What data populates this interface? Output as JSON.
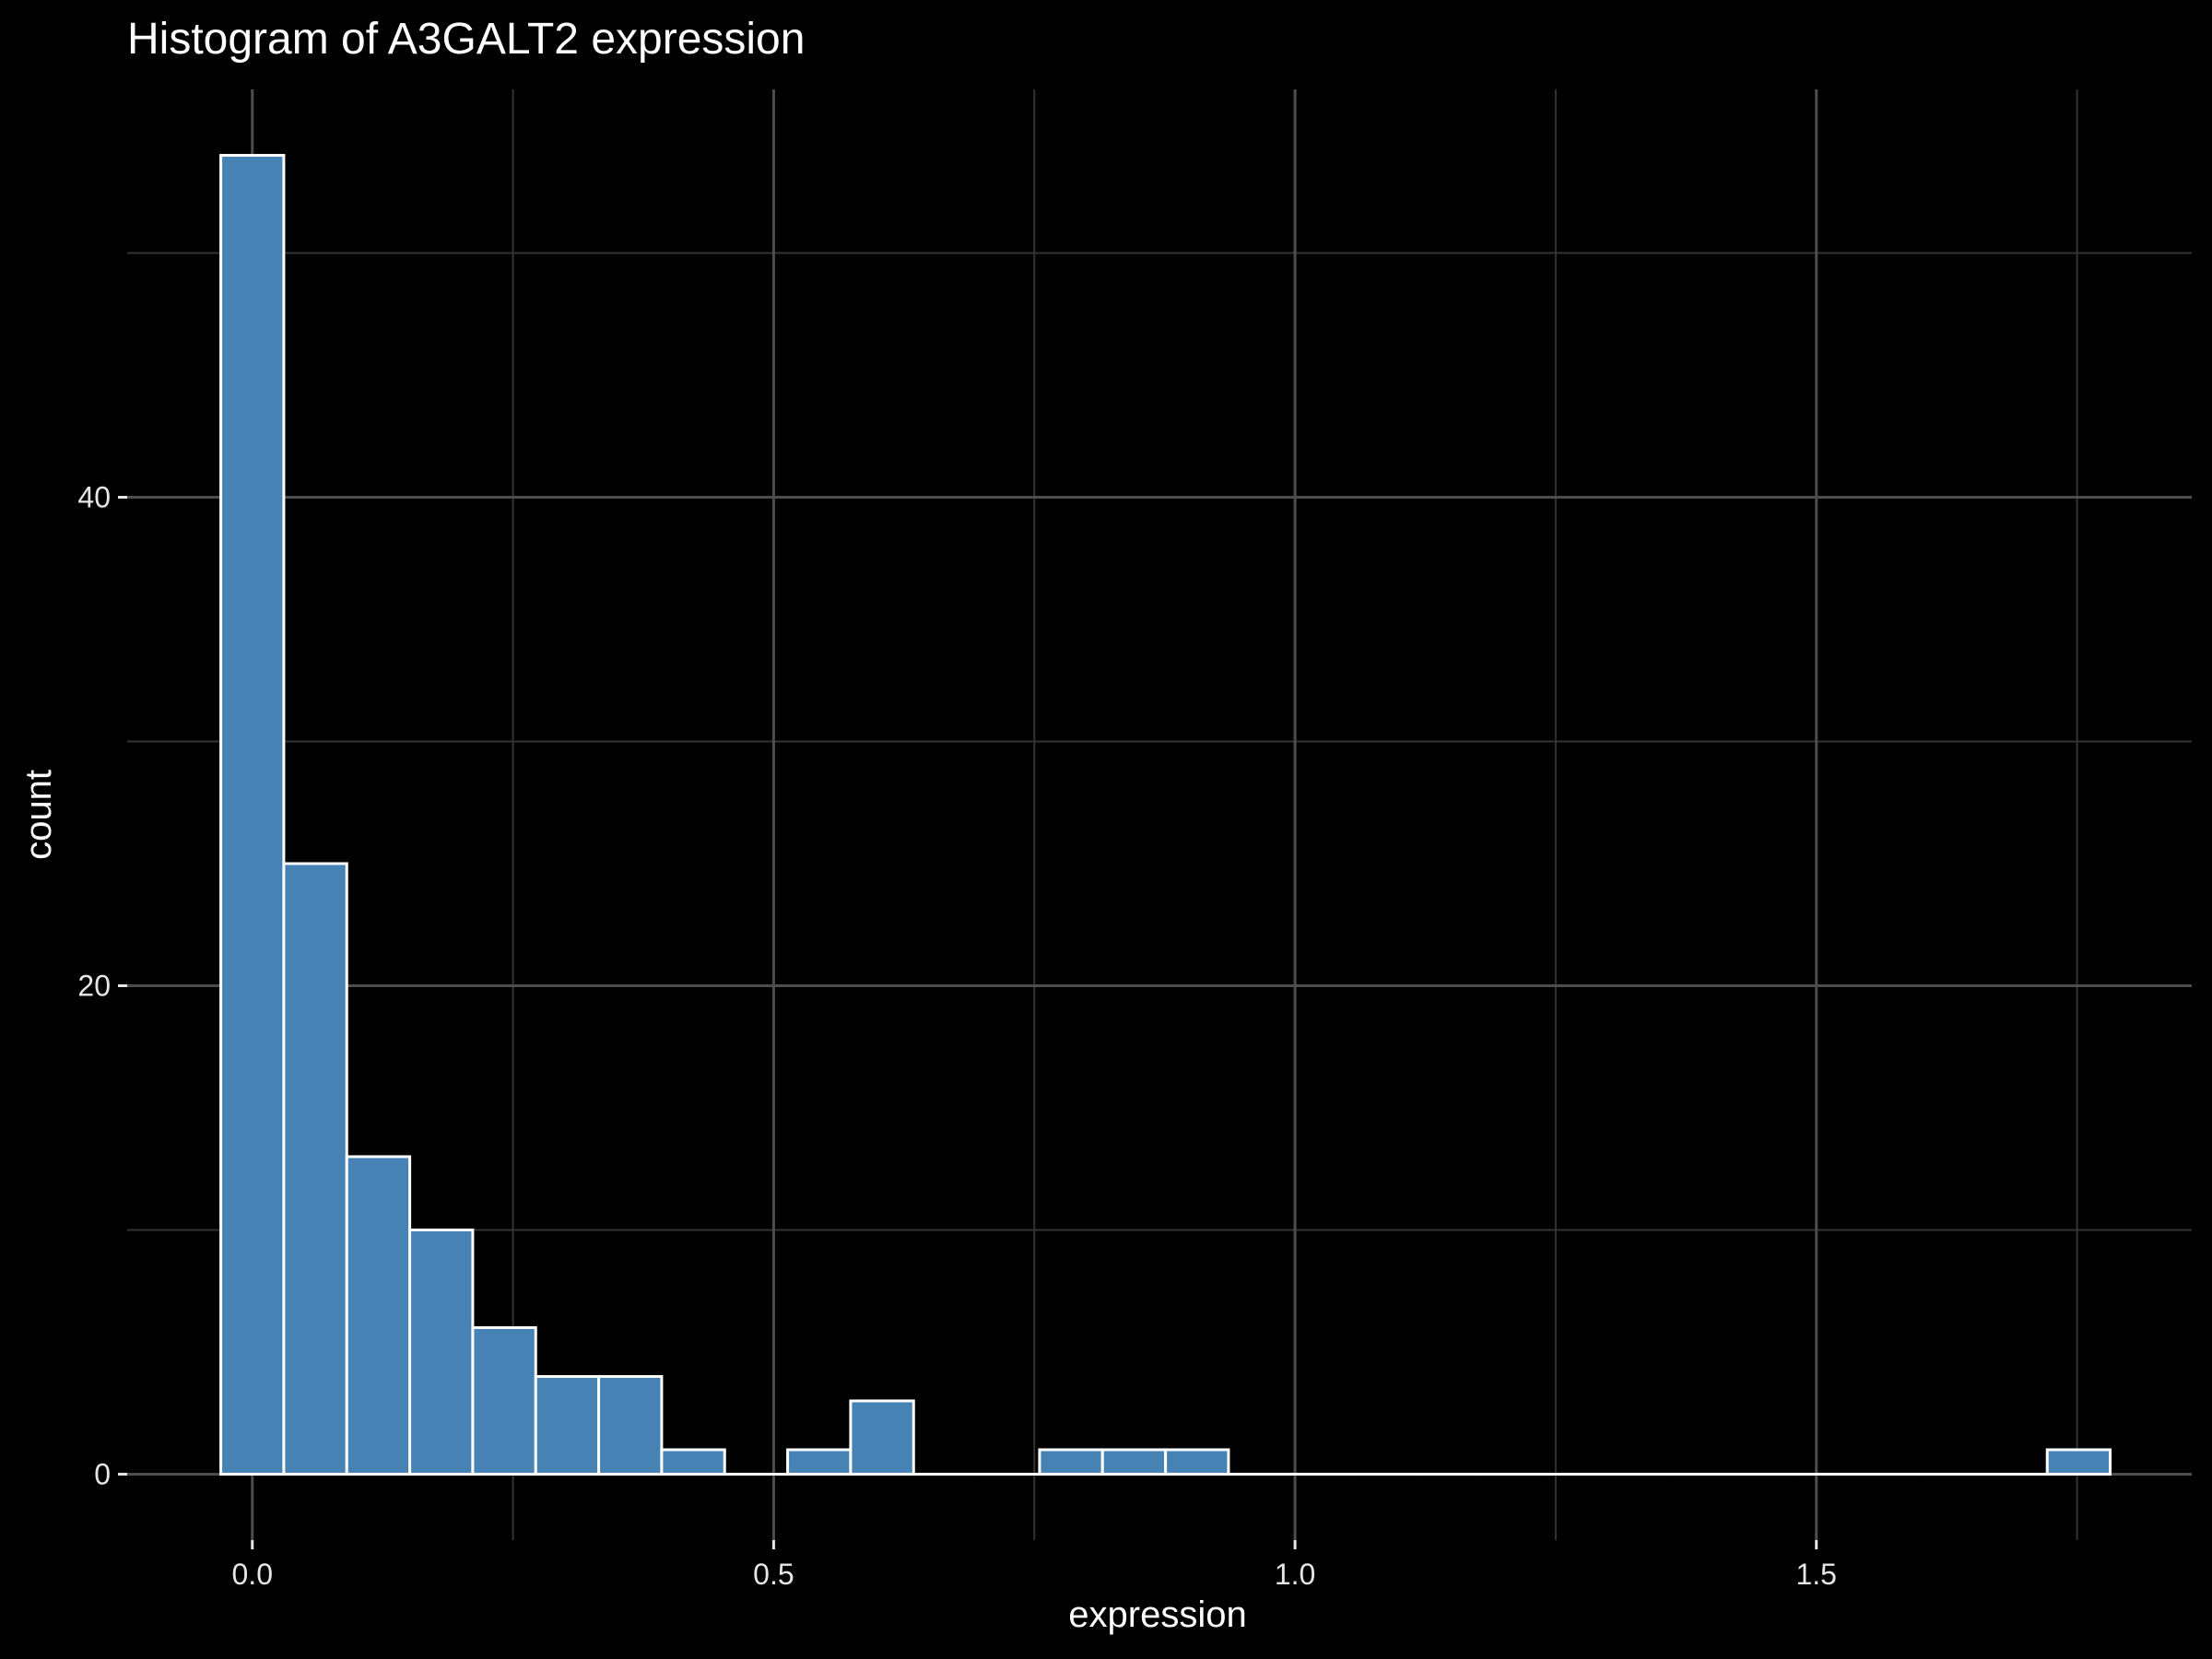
{
  "chart_data": {
    "type": "bar",
    "title": "Histogram of A3GALT2 expression",
    "xlabel": "expression",
    "ylabel": "count",
    "bin_width": 0.0604,
    "first_bin_center": 0,
    "counts": [
      54,
      25,
      13,
      10,
      6,
      4,
      4,
      1,
      0,
      1,
      3,
      0,
      0,
      1,
      1,
      1,
      0,
      0,
      0,
      0,
      0,
      0,
      0,
      0,
      0,
      0,
      0,
      0,
      0,
      1
    ],
    "xlim": [
      -0.12,
      1.86
    ],
    "ylim": [
      -2.7,
      56.7
    ],
    "x_ticks": [
      0.0,
      0.5,
      1.0,
      1.5
    ],
    "x_tick_labels": [
      "0.0",
      "0.5",
      "1.0",
      "1.5"
    ],
    "y_ticks": [
      0,
      20,
      40
    ],
    "y_tick_labels": [
      "0",
      "20",
      "40"
    ],
    "grid": true,
    "bar_fill": "#4682b4",
    "bar_stroke": "#ffffff",
    "background": "#000000"
  }
}
